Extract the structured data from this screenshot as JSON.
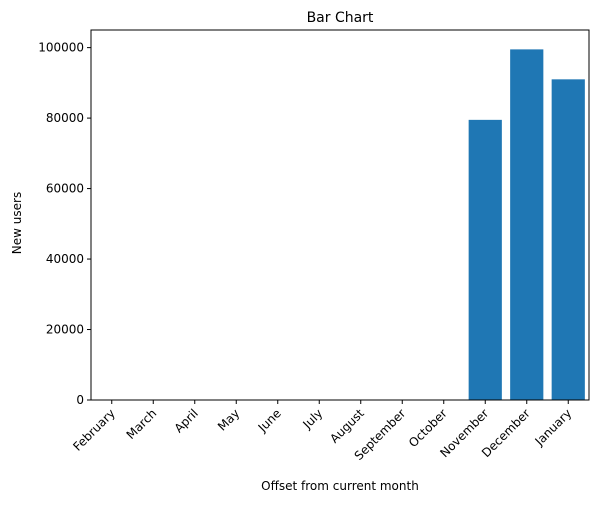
{
  "chart_data": {
    "type": "bar",
    "title": "Bar Chart",
    "xlabel": "Offset from current month",
    "ylabel": "New users",
    "categories": [
      "February",
      "March",
      "April",
      "May",
      "June",
      "July",
      "August",
      "September",
      "October",
      "November",
      "December",
      "January"
    ],
    "values": [
      0,
      0,
      0,
      0,
      0,
      0,
      0,
      0,
      0,
      79500,
      99500,
      91000
    ],
    "ylim": [
      0,
      105000
    ],
    "yticks": [
      0,
      20000,
      40000,
      60000,
      80000,
      100000
    ],
    "ytick_labels": [
      "0",
      "20000",
      "40000",
      "60000",
      "80000",
      "100000"
    ],
    "bar_color": "#1f77b4",
    "grid": false,
    "legend": "none"
  }
}
